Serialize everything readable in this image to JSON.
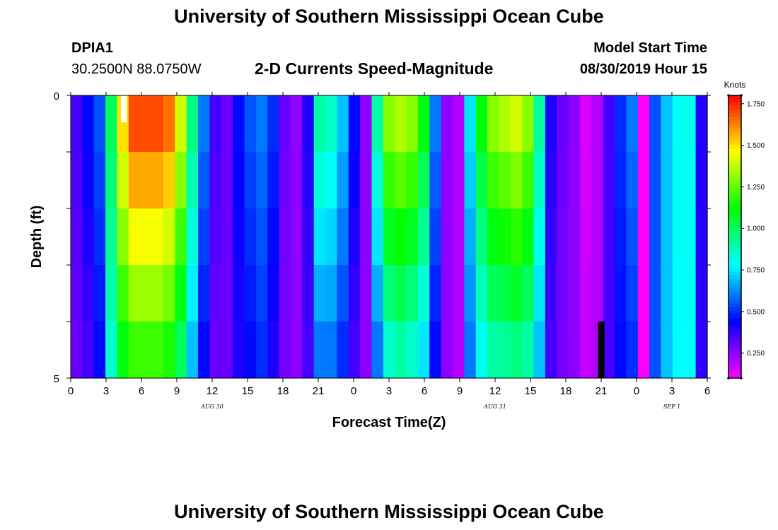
{
  "header": {
    "title_top": "University of Southern Mississippi Ocean Cube",
    "station_id": "DPIA1",
    "station_coords": "30.2500N 88.0750W",
    "chart_title": "2-D Currents Speed-Magnitude",
    "model_label": "Model Start Time",
    "model_time": "08/30/2019 Hour 15",
    "title_bottom": "University of Southern Mississippi Ocean Cube"
  },
  "chart_data": {
    "type": "heatmap",
    "title": "2-D Currents Speed-Magnitude",
    "xlabel": "Forecast Time(Z)",
    "ylabel": "Depth (ft)",
    "units": "Knots",
    "x_range_hours": [
      0,
      54
    ],
    "y_range": [
      0,
      5
    ],
    "x_tick_labels": [
      "0",
      "3",
      "6",
      "9",
      "12",
      "15",
      "18",
      "21",
      "0",
      "3",
      "6",
      "9",
      "12",
      "15",
      "18",
      "21",
      "0",
      "3",
      "6"
    ],
    "y_tick_labels": [
      "0",
      "5"
    ],
    "date_labels": [
      {
        "hour": 12,
        "text": "AUG 30"
      },
      {
        "hour": 36,
        "text": "AUG 31"
      },
      {
        "hour": 51,
        "text": "SEP 1"
      }
    ],
    "colorbar": {
      "range": [
        0.1,
        1.8
      ],
      "ticks": [
        0.25,
        0.5,
        0.75,
        1.0,
        1.25,
        1.5,
        1.75
      ],
      "tick_labels": [
        "0.250",
        "0.500",
        "0.750",
        "1.000",
        "1.250",
        "1.500",
        "1.750"
      ]
    },
    "depth_layers": 5,
    "speed_profile_surface": [
      0.35,
      0.45,
      0.55,
      1.0,
      1.5,
      1.7,
      1.7,
      1.7,
      1.65,
      1.4,
      0.95,
      0.6,
      0.35,
      0.3,
      0.45,
      0.55,
      0.6,
      0.5,
      0.3,
      0.25,
      0.4,
      0.9,
      0.85,
      0.7,
      0.45,
      0.25,
      0.9,
      1.3,
      1.35,
      1.3,
      1.1,
      0.6,
      0.25,
      0.2,
      0.75,
      1.1,
      1.3,
      1.35,
      1.4,
      1.3,
      0.9,
      0.4,
      0.3,
      0.25,
      0.15,
      0.2,
      0.35,
      0.5,
      0.6,
      0.1,
      0.55,
      0.7,
      0.8,
      0.8,
      0.4
    ],
    "speed_profile_bottom": [
      0.3,
      0.35,
      0.45,
      0.85,
      1.1,
      1.2,
      1.2,
      1.2,
      1.15,
      1.0,
      0.7,
      0.45,
      0.3,
      0.3,
      0.4,
      0.45,
      0.5,
      0.4,
      0.28,
      0.25,
      0.35,
      0.6,
      0.6,
      0.5,
      0.35,
      0.25,
      0.6,
      0.85,
      0.9,
      0.85,
      0.75,
      0.45,
      0.25,
      0.2,
      0.6,
      0.8,
      0.9,
      0.92,
      0.95,
      0.9,
      0.7,
      0.35,
      0.28,
      0.25,
      0.18,
      0.2,
      0.35,
      0.45,
      0.5,
      0.1,
      0.55,
      0.7,
      0.78,
      0.78,
      0.38
    ],
    "missing_cells": [
      {
        "hour": 4.5,
        "layer": 0,
        "color": "white"
      },
      {
        "hour": 45,
        "layer": 4,
        "color": "black"
      }
    ]
  }
}
